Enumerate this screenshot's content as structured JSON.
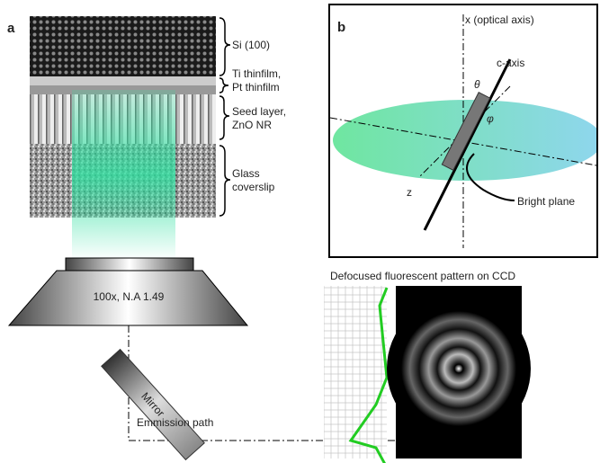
{
  "panel_a": {
    "label": "a",
    "layers": [
      "Si (100)",
      "Ti thinfilm,",
      "Pt thinfilm",
      "Seed layer,",
      "ZnO NR",
      "Glass",
      "coverslip"
    ],
    "objective": "100x, N.A 1.49",
    "mirror": "Mirror",
    "path": "Emmission path",
    "ccd_title": "Defocused fluorescent pattern on CCD"
  },
  "panel_b": {
    "label": "b",
    "x_axis": "x (optical axis)",
    "c_axis": "c-axis",
    "theta": "θ",
    "phi": "φ",
    "z_axis": "z",
    "bright_plane": "Bright plane"
  }
}
